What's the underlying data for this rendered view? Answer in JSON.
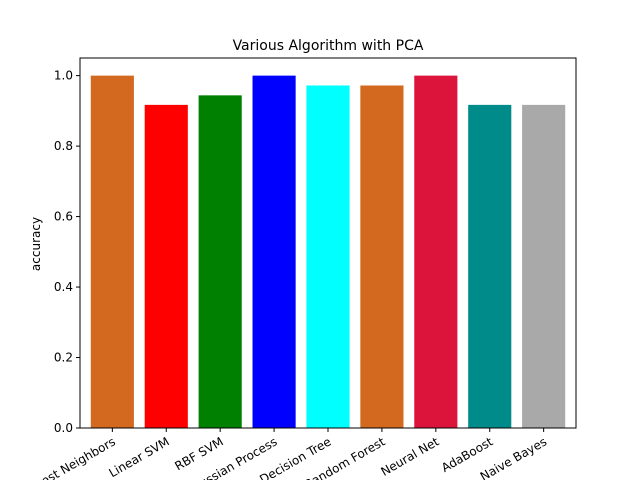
{
  "chart_data": {
    "type": "bar",
    "title": "Various Algorithm with PCA",
    "xlabel": "",
    "ylabel": "accuracy",
    "ylim": [
      0,
      1.05
    ],
    "yticks": [
      0.0,
      0.2,
      0.4,
      0.6,
      0.8,
      1.0
    ],
    "ytick_labels": [
      "0.0",
      "0.2",
      "0.4",
      "0.6",
      "0.8",
      "1.0"
    ],
    "grid": false,
    "x_tick_rotation_deg": 30,
    "categories": [
      "Nearest Neighbors",
      "Linear SVM",
      "RBF SVM",
      "Gaussian Process",
      "Decision Tree",
      "Random Forest",
      "Neural Net",
      "AdaBoost",
      "Naive Bayes"
    ],
    "values": [
      1.0,
      0.917,
      0.944,
      1.0,
      0.972,
      0.972,
      1.0,
      0.917,
      0.917
    ],
    "colors": [
      "#d2691e",
      "#ff0000",
      "#008000",
      "#0000ff",
      "#00ffff",
      "#d2691e",
      "#dc143c",
      "#008b8b",
      "#a9a9a9"
    ]
  }
}
